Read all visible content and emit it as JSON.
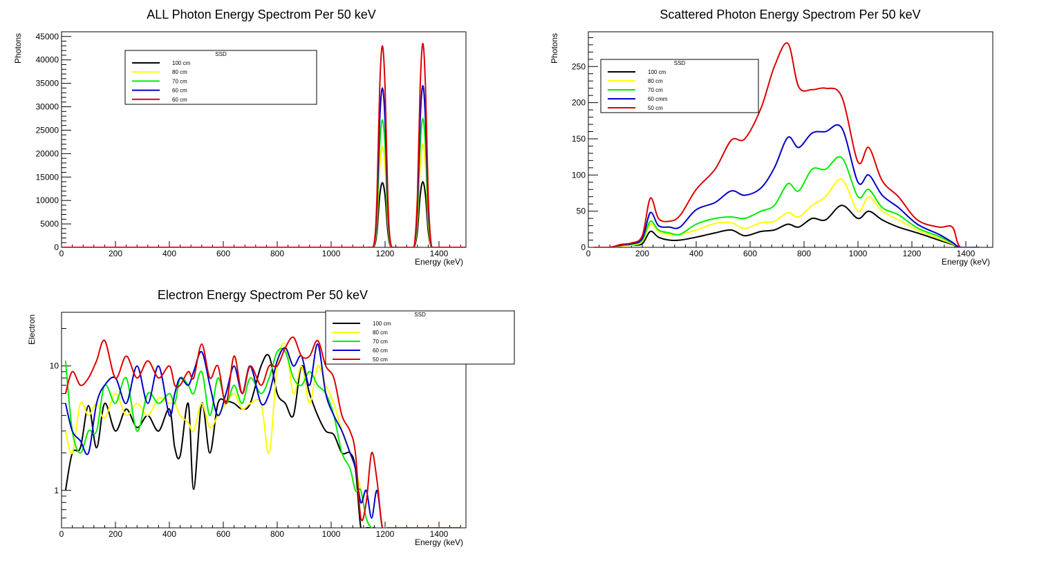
{
  "colors": {
    "black": "#000000",
    "yellow": "#ffff00",
    "green": "#00ee00",
    "blue": "#0000cc",
    "red": "#dd0000"
  },
  "chart_data": [
    {
      "type": "line",
      "title": "ALL Photon Energy Spectrom Per 50 keV",
      "xlabel": "Energy (keV)",
      "ylabel": "Photons",
      "xlim": [
        0,
        1500
      ],
      "ylim": [
        0,
        46000
      ],
      "yscale": "linear",
      "xticks": [
        0,
        200,
        400,
        600,
        800,
        1000,
        1200,
        1400
      ],
      "yticks": [
        0,
        5000,
        10000,
        15000,
        20000,
        25000,
        30000,
        35000,
        40000,
        45000
      ],
      "grid": false,
      "legend": {
        "title": "SSD",
        "placement": "top-left",
        "entries": [
          "100 cm",
          "80 cm",
          "70 cm",
          "60 cm",
          "60 cm"
        ]
      },
      "x": [
        0,
        200,
        400,
        600,
        800,
        1000,
        1100,
        1140,
        1160,
        1170,
        1180,
        1190,
        1200,
        1210,
        1220,
        1240,
        1280,
        1300,
        1310,
        1320,
        1330,
        1340,
        1350,
        1360,
        1370,
        1380,
        1400,
        1500
      ],
      "series": [
        {
          "name": "100 cm",
          "color": "black",
          "values": [
            0,
            0,
            0,
            0,
            0,
            0,
            0,
            0,
            300,
            3500,
            11000,
            13800,
            11000,
            3500,
            300,
            0,
            0,
            0,
            300,
            3500,
            11000,
            14000,
            11000,
            3500,
            300,
            0,
            0,
            0
          ]
        },
        {
          "name": "80 cm",
          "color": "yellow",
          "values": [
            0,
            0,
            0,
            0,
            0,
            0,
            0,
            0,
            500,
            5500,
            17000,
            21500,
            17000,
            5500,
            500,
            0,
            0,
            0,
            500,
            5500,
            17000,
            22000,
            17000,
            5500,
            500,
            0,
            0,
            0
          ]
        },
        {
          "name": "70 cm",
          "color": "green",
          "values": [
            0,
            0,
            0,
            0,
            0,
            0,
            0,
            0,
            700,
            7000,
            21500,
            27200,
            21500,
            7000,
            700,
            0,
            0,
            0,
            700,
            7000,
            21500,
            27500,
            21500,
            7000,
            700,
            0,
            0,
            0
          ]
        },
        {
          "name": "60 cm",
          "color": "blue",
          "values": [
            0,
            0,
            0,
            0,
            0,
            0,
            0,
            0,
            900,
            8800,
            27000,
            34000,
            27000,
            8800,
            900,
            0,
            0,
            0,
            900,
            8800,
            27000,
            34500,
            27000,
            8800,
            900,
            0,
            0,
            0
          ]
        },
        {
          "name": "60 cm",
          "color": "red",
          "values": [
            0,
            0,
            0,
            0,
            0,
            0,
            0,
            0,
            1100,
            11000,
            34000,
            43000,
            34000,
            11000,
            1100,
            0,
            0,
            0,
            1100,
            11000,
            34000,
            43500,
            34000,
            11000,
            1100,
            0,
            0,
            0
          ]
        }
      ]
    },
    {
      "type": "line",
      "title": "Scattered Photon Energy Spectrom Per 50 keV",
      "xlabel": "Energy (keV)",
      "ylabel": "Photons",
      "xlim": [
        0,
        1500
      ],
      "ylim": [
        0,
        298
      ],
      "yscale": "linear",
      "xticks": [
        0,
        200,
        400,
        600,
        800,
        1000,
        1200,
        1400
      ],
      "yticks": [
        0,
        50,
        100,
        150,
        200,
        250
      ],
      "grid": false,
      "legend": {
        "title": "SSD",
        "placement": "top-left",
        "entries": [
          "100 cm",
          "80 cm",
          "70 cm",
          "60 cmm",
          "50 cm"
        ]
      },
      "x": [
        20,
        80,
        120,
        160,
        200,
        230,
        260,
        300,
        340,
        400,
        470,
        530,
        580,
        640,
        690,
        740,
        780,
        830,
        880,
        940,
        1000,
        1040,
        1090,
        1150,
        1220,
        1300,
        1350,
        1380,
        1450
      ],
      "series": [
        {
          "name": "100 cm",
          "color": "black",
          "values": [
            0,
            0,
            2,
            3,
            5,
            22,
            14,
            10,
            10,
            14,
            20,
            24,
            16,
            22,
            24,
            32,
            28,
            40,
            38,
            58,
            40,
            50,
            38,
            28,
            20,
            10,
            4,
            0,
            0
          ]
        },
        {
          "name": "80 cm",
          "color": "yellow",
          "values": [
            0,
            0,
            2,
            3,
            8,
            32,
            22,
            18,
            18,
            24,
            33,
            34,
            26,
            34,
            36,
            48,
            42,
            58,
            70,
            94,
            50,
            70,
            50,
            38,
            24,
            12,
            5,
            0,
            0
          ]
        },
        {
          "name": "70 cm",
          "color": "green",
          "values": [
            0,
            0,
            3,
            4,
            10,
            36,
            24,
            20,
            18,
            32,
            40,
            42,
            40,
            50,
            58,
            88,
            78,
            108,
            108,
            124,
            70,
            80,
            55,
            45,
            27,
            15,
            6,
            0,
            0
          ]
        },
        {
          "name": "60 cmm",
          "color": "blue",
          "values": [
            0,
            0,
            3,
            5,
            12,
            48,
            30,
            28,
            28,
            52,
            62,
            78,
            72,
            82,
            110,
            152,
            138,
            158,
            160,
            165,
            90,
            100,
            72,
            55,
            32,
            18,
            7,
            0,
            0
          ]
        },
        {
          "name": "50 cm",
          "color": "red",
          "values": [
            0,
            0,
            4,
            6,
            16,
            68,
            40,
            36,
            44,
            80,
            108,
            148,
            150,
            192,
            250,
            282,
            222,
            218,
            220,
            208,
            118,
            138,
            92,
            70,
            38,
            28,
            28,
            0,
            0
          ]
        }
      ]
    },
    {
      "type": "line",
      "title": "Electron Energy Spectrom Per 50 keV",
      "xlabel": "Energy (keV)",
      "ylabel": "Electron",
      "xlim": [
        0,
        1500
      ],
      "ylim": [
        0.5,
        27
      ],
      "yscale": "log",
      "xticks": [
        0,
        200,
        400,
        600,
        800,
        1000,
        1200,
        1400
      ],
      "yticks": [
        1,
        10
      ],
      "grid": false,
      "legend": {
        "title": "SSD",
        "placement": "top-right",
        "entries": [
          "100 cm",
          "80 cm",
          "70 cm",
          "60 cm",
          "50 cm"
        ]
      },
      "x": [
        15,
        40,
        70,
        100,
        130,
        160,
        200,
        240,
        280,
        320,
        360,
        400,
        420,
        440,
        470,
        490,
        520,
        550,
        580,
        610,
        640,
        670,
        700,
        740,
        770,
        800,
        830,
        860,
        890,
        920,
        950,
        980,
        1010,
        1040,
        1070,
        1090,
        1110,
        1130,
        1150,
        1170,
        1190,
        1210,
        1250,
        1480
      ],
      "series": [
        {
          "name": "100 cm",
          "color": "black",
          "values": [
            1,
            2,
            2.2,
            4.8,
            2.2,
            5,
            3,
            4.5,
            3.2,
            4,
            3,
            4.5,
            2.2,
            1.9,
            5,
            1.02,
            5,
            2,
            5,
            5.2,
            5,
            4.5,
            5,
            10,
            12,
            6,
            5,
            4,
            10,
            6,
            4,
            3,
            2.8,
            2,
            2,
            1.5,
            0.5,
            0.5,
            0.5,
            0.5,
            0.5,
            0.5,
            0.5,
            0.5
          ]
        },
        {
          "name": "80 cm",
          "color": "yellow",
          "values": [
            3,
            2,
            5,
            4,
            5,
            3.8,
            6,
            4,
            5,
            4,
            5.5,
            5,
            5,
            4,
            3.5,
            3,
            5,
            3.2,
            4,
            5,
            6,
            4.5,
            5,
            5,
            2,
            10,
            15,
            6,
            10,
            5,
            10,
            7,
            5,
            3,
            2,
            1.5,
            1,
            0.6,
            0.5,
            0.5,
            0.5,
            0.5,
            0.5,
            0.5
          ]
        },
        {
          "name": "70 cm",
          "color": "green",
          "values": [
            11,
            3,
            2,
            3,
            3,
            7,
            5,
            8,
            3,
            6,
            5,
            6,
            5,
            8,
            7,
            6,
            9,
            4,
            8,
            5,
            7,
            5,
            8,
            6,
            8,
            13,
            13,
            8,
            7,
            9,
            7,
            6,
            4,
            2,
            1.5,
            1,
            1,
            0.6,
            0.5,
            0.5,
            0.5,
            0.5,
            0.5,
            0.5
          ]
        },
        {
          "name": "60 cm",
          "color": "blue",
          "values": [
            5,
            3,
            2.5,
            2,
            5,
            7,
            8,
            5,
            10,
            5,
            10,
            4,
            6,
            8,
            7,
            9,
            13,
            7,
            4,
            6,
            10,
            6,
            10,
            5,
            6,
            11,
            14,
            10,
            12,
            7,
            15,
            6,
            4,
            3,
            2,
            1.5,
            0.8,
            1,
            0.6,
            1,
            0.5,
            0.5,
            0.5,
            0.5
          ]
        },
        {
          "name": "50 cm",
          "color": "red",
          "values": [
            6,
            9,
            7,
            8,
            11,
            16,
            8,
            12,
            8,
            11,
            8,
            10,
            7,
            7,
            9,
            8,
            15,
            8,
            10,
            5,
            12,
            6,
            10,
            7,
            10,
            10,
            14,
            17,
            12,
            12,
            16,
            10,
            8,
            4,
            3,
            2,
            0.6,
            0.8,
            2,
            1.2,
            0.5,
            0.5,
            0.5,
            0.5
          ]
        }
      ]
    }
  ]
}
